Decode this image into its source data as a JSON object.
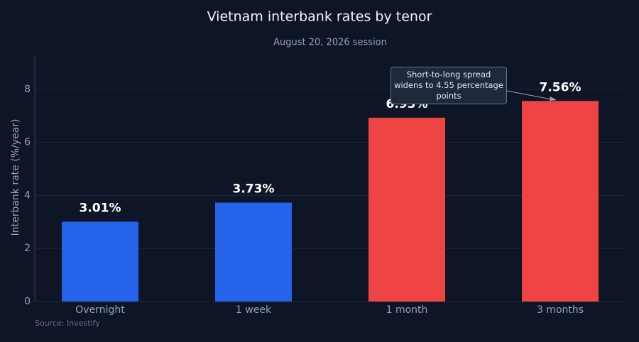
{
  "chart_data": {
    "type": "bar",
    "title": "Vietnam interbank rates by tenor",
    "subtitle": "August 20, 2026 session",
    "y_label": "Interbank rate (%/year)",
    "categories": [
      "Overnight",
      "1 week",
      "1 month",
      "3 months"
    ],
    "values": [
      3.01,
      3.73,
      6.93,
      7.56
    ],
    "value_labels": [
      "3.01%",
      "3.73%",
      "6.93%",
      "7.56%"
    ],
    "colors": [
      "#2563eb",
      "#2563eb",
      "#ef4444",
      "#ef4444"
    ],
    "ylim": [
      0,
      9.28
    ],
    "yticks": [
      0,
      2,
      4,
      6,
      8
    ],
    "grid": true,
    "annotation": "Short-to-long spread widens to 4.55 percentage points",
    "source": "Source: Investify"
  }
}
